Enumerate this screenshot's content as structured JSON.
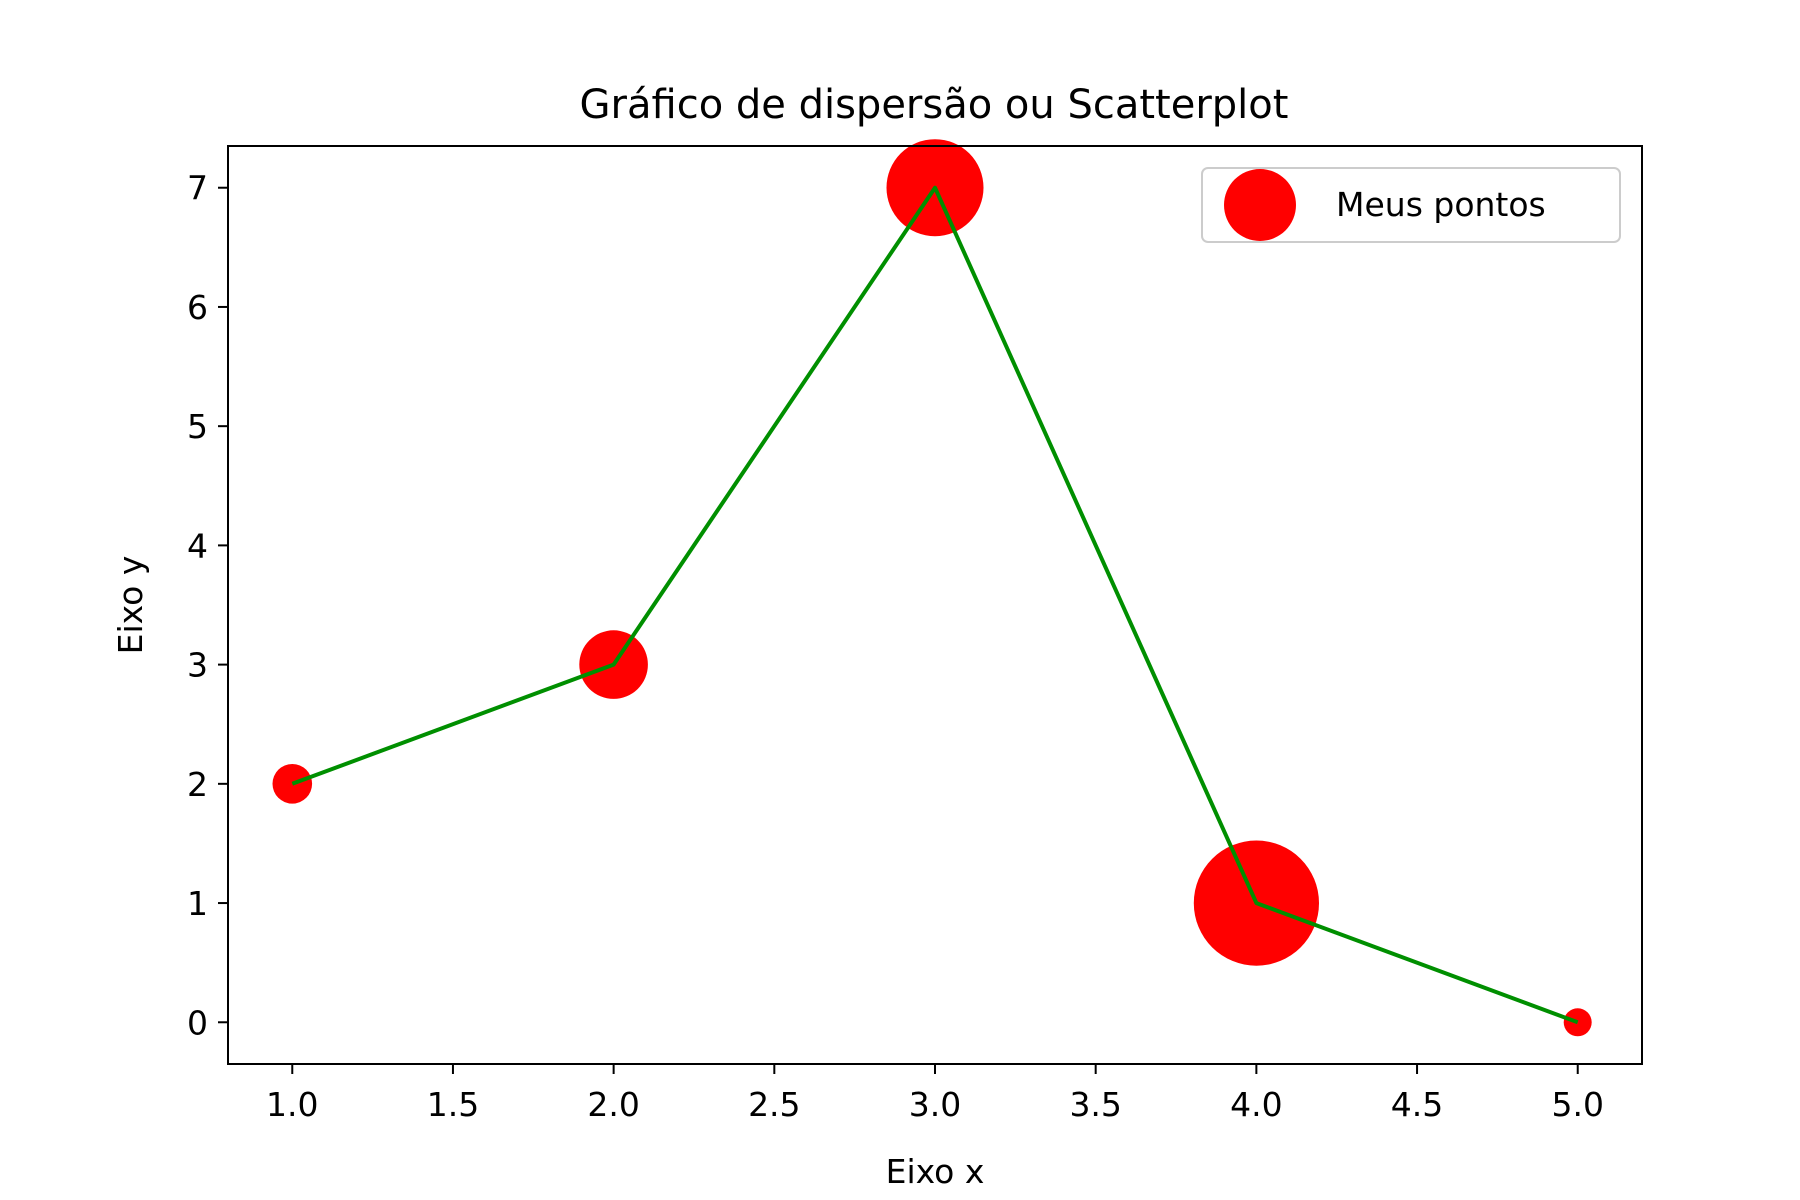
{
  "chart_data": {
    "type": "scatter",
    "title": "Gráfico de dispersão ou Scatterplot",
    "xlabel": "Eixo x",
    "ylabel": "Eixo y",
    "xlim": [
      0.8,
      5.2
    ],
    "ylim": [
      -0.35,
      7.35
    ],
    "xticks": [
      1.0,
      1.5,
      2.0,
      2.5,
      3.0,
      3.5,
      4.0,
      4.5,
      5.0
    ],
    "xtick_labels": [
      "1.0",
      "1.5",
      "2.0",
      "2.5",
      "3.0",
      "3.5",
      "4.0",
      "4.5",
      "5.0"
    ],
    "yticks": [
      0,
      1,
      2,
      3,
      4,
      5,
      6,
      7
    ],
    "ytick_labels": [
      "0",
      "1",
      "2",
      "3",
      "4",
      "5",
      "6",
      "7"
    ],
    "grid": false,
    "legend_placement": "top-right",
    "series": [
      {
        "name": "Meus pontos",
        "kind": "scatter",
        "color": "#ff0000",
        "x": [
          1,
          2,
          3,
          4,
          5
        ],
        "y": [
          2,
          3,
          7,
          1,
          0
        ],
        "sizes": [
          100,
          300,
          600,
          1000,
          50
        ]
      },
      {
        "kind": "line",
        "color": "#008f00",
        "x": [
          1,
          2,
          3,
          4,
          5
        ],
        "y": [
          2,
          3,
          7,
          1,
          0
        ]
      }
    ]
  }
}
